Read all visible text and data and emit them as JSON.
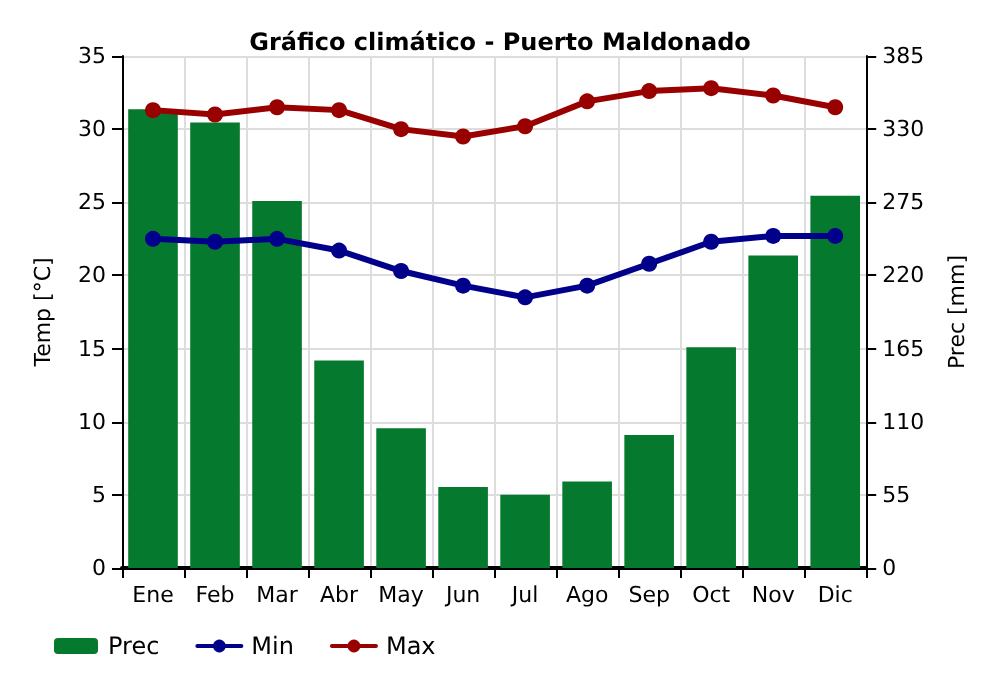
{
  "chart_data": {
    "type": "bar",
    "title": "Gráfico climático - Puerto Maldonado",
    "ylabel": "Temp [°C]",
    "y2label": "Prec [mm]",
    "categories": [
      "Ene",
      "Feb",
      "Mar",
      "Abr",
      "May",
      "Jun",
      "Jul",
      "Ago",
      "Sep",
      "Oct",
      "Nov",
      "Dic"
    ],
    "series": [
      {
        "name": "Prec",
        "axis": "y2",
        "color": "#057a2e",
        "values": [
          345,
          335,
          276,
          156,
          105,
          61,
          55,
          65,
          100,
          166,
          235,
          280
        ]
      },
      {
        "name": "Min",
        "type": "line",
        "color": "#00008b",
        "values": [
          22.5,
          22.3,
          22.5,
          21.7,
          20.3,
          19.3,
          18.5,
          19.3,
          20.8,
          22.3,
          22.7,
          22.7
        ]
      },
      {
        "name": "Max",
        "type": "line",
        "color": "#990000",
        "values": [
          31.3,
          31.0,
          31.5,
          31.3,
          30.0,
          29.5,
          30.2,
          31.9,
          32.6,
          32.8,
          32.3,
          31.5
        ]
      }
    ],
    "ylim": [
      0,
      35
    ],
    "yticks": [
      0,
      5,
      10,
      15,
      20,
      25,
      30,
      35
    ],
    "y2lim": [
      0,
      385
    ],
    "y2ticks": [
      0,
      55,
      110,
      165,
      220,
      275,
      330,
      385
    ],
    "grid": true,
    "legend": "bottom left",
    "marker": "circle",
    "line_style": "solid"
  }
}
